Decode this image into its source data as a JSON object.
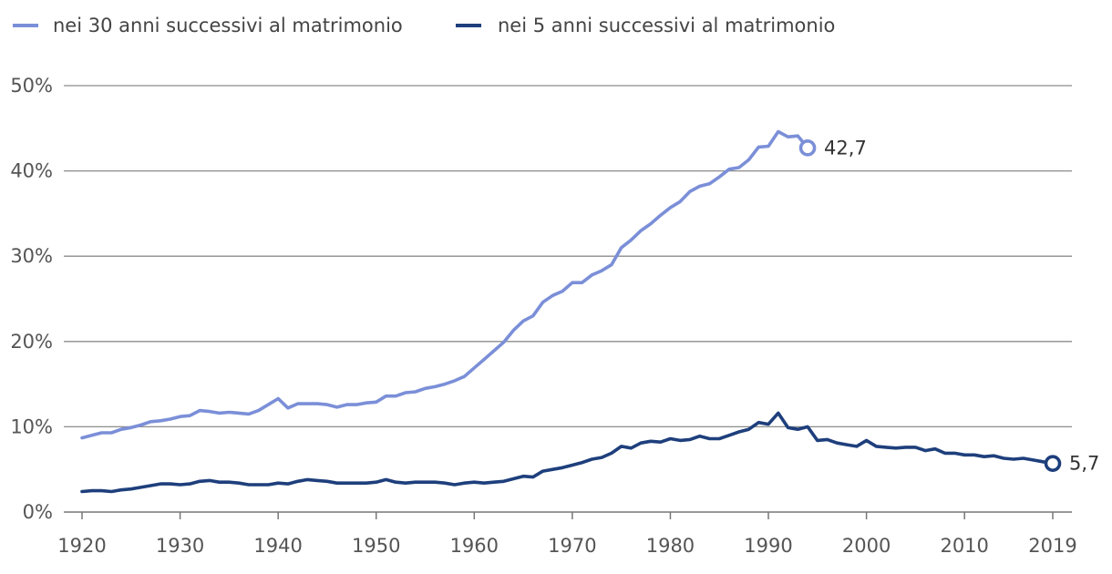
{
  "chart_data": {
    "type": "line",
    "ylim": [
      0,
      50
    ],
    "xlim": [
      1920,
      2019
    ],
    "y_ticks": [
      "0%",
      "10%",
      "20%",
      "30%",
      "40%",
      "50%"
    ],
    "x_ticks": [
      "1920",
      "1930",
      "1940",
      "1950",
      "1960",
      "1970",
      "1980",
      "1990",
      "2000",
      "2010",
      "2019"
    ],
    "grid": true,
    "legend_position": "top-left",
    "series": [
      {
        "name": "nei 30 anni successivi al matrimonio",
        "color": "#7b8fd8",
        "end_label": "42,7",
        "x": [
          1920,
          1921,
          1922,
          1923,
          1924,
          1925,
          1926,
          1927,
          1928,
          1929,
          1930,
          1931,
          1932,
          1933,
          1934,
          1935,
          1936,
          1937,
          1938,
          1939,
          1940,
          1941,
          1942,
          1943,
          1944,
          1945,
          1946,
          1947,
          1948,
          1949,
          1950,
          1951,
          1952,
          1953,
          1954,
          1955,
          1956,
          1957,
          1958,
          1959,
          1960,
          1961,
          1962,
          1963,
          1964,
          1965,
          1966,
          1967,
          1968,
          1969,
          1970,
          1971,
          1972,
          1973,
          1974,
          1975,
          1976,
          1977,
          1978,
          1979,
          1980,
          1981,
          1982,
          1983,
          1984,
          1985,
          1986,
          1987,
          1988,
          1989,
          1990,
          1991,
          1992,
          1993,
          1994
        ],
        "values": [
          8.7,
          9.0,
          9.3,
          9.3,
          9.7,
          9.9,
          10.2,
          10.6,
          10.7,
          10.9,
          11.2,
          11.3,
          11.9,
          11.8,
          11.6,
          11.7,
          11.6,
          11.5,
          11.9,
          12.6,
          13.3,
          12.2,
          12.7,
          12.7,
          12.7,
          12.6,
          12.3,
          12.6,
          12.6,
          12.8,
          12.9,
          13.6,
          13.6,
          14.0,
          14.1,
          14.5,
          14.7,
          15.0,
          15.4,
          15.9,
          16.9,
          17.9,
          18.9,
          19.9,
          21.3,
          22.4,
          23.0,
          24.6,
          25.4,
          25.9,
          26.9,
          26.9,
          27.8,
          28.3,
          29.0,
          31.0,
          31.9,
          33.0,
          33.8,
          34.8,
          35.7,
          36.4,
          37.6,
          38.2,
          38.5,
          39.3,
          40.2,
          40.4,
          41.3,
          42.8,
          42.9,
          44.6,
          44.0,
          44.1,
          42.7
        ]
      },
      {
        "name": "nei 5 anni successivi al matrimonio",
        "color": "#1e3f7c",
        "end_label": "5,7",
        "x": [
          1920,
          1921,
          1922,
          1923,
          1924,
          1925,
          1926,
          1927,
          1928,
          1929,
          1930,
          1931,
          1932,
          1933,
          1934,
          1935,
          1936,
          1937,
          1938,
          1939,
          1940,
          1941,
          1942,
          1943,
          1944,
          1945,
          1946,
          1947,
          1948,
          1949,
          1950,
          1951,
          1952,
          1953,
          1954,
          1955,
          1956,
          1957,
          1958,
          1959,
          1960,
          1961,
          1962,
          1963,
          1964,
          1965,
          1966,
          1967,
          1968,
          1969,
          1970,
          1971,
          1972,
          1973,
          1974,
          1975,
          1976,
          1977,
          1978,
          1979,
          1980,
          1981,
          1982,
          1983,
          1984,
          1985,
          1986,
          1987,
          1988,
          1989,
          1990,
          1991,
          1992,
          1993,
          1994,
          1995,
          1996,
          1997,
          1998,
          1999,
          2000,
          2001,
          2002,
          2003,
          2004,
          2005,
          2006,
          2007,
          2008,
          2009,
          2010,
          2011,
          2012,
          2013,
          2014,
          2015,
          2016,
          2017,
          2018,
          2019
        ],
        "values": [
          2.4,
          2.5,
          2.5,
          2.4,
          2.6,
          2.7,
          2.9,
          3.1,
          3.3,
          3.3,
          3.2,
          3.3,
          3.6,
          3.7,
          3.5,
          3.5,
          3.4,
          3.2,
          3.2,
          3.2,
          3.4,
          3.3,
          3.6,
          3.8,
          3.7,
          3.6,
          3.4,
          3.4,
          3.4,
          3.4,
          3.5,
          3.8,
          3.5,
          3.4,
          3.5,
          3.5,
          3.5,
          3.4,
          3.2,
          3.4,
          3.5,
          3.4,
          3.5,
          3.6,
          3.9,
          4.2,
          4.1,
          4.8,
          5.0,
          5.2,
          5.5,
          5.8,
          6.2,
          6.4,
          6.9,
          7.7,
          7.5,
          8.1,
          8.3,
          8.2,
          8.6,
          8.4,
          8.5,
          8.9,
          8.6,
          8.6,
          9.0,
          9.4,
          9.7,
          10.5,
          10.3,
          11.6,
          9.9,
          9.7,
          10.0,
          8.4,
          8.5,
          8.1,
          7.9,
          7.7,
          8.4,
          7.7,
          7.6,
          7.5,
          7.6,
          7.6,
          7.2,
          7.4,
          6.9,
          6.9,
          6.7,
          6.7,
          6.5,
          6.6,
          6.3,
          6.2,
          6.3,
          6.1,
          5.9,
          5.7
        ]
      }
    ]
  }
}
